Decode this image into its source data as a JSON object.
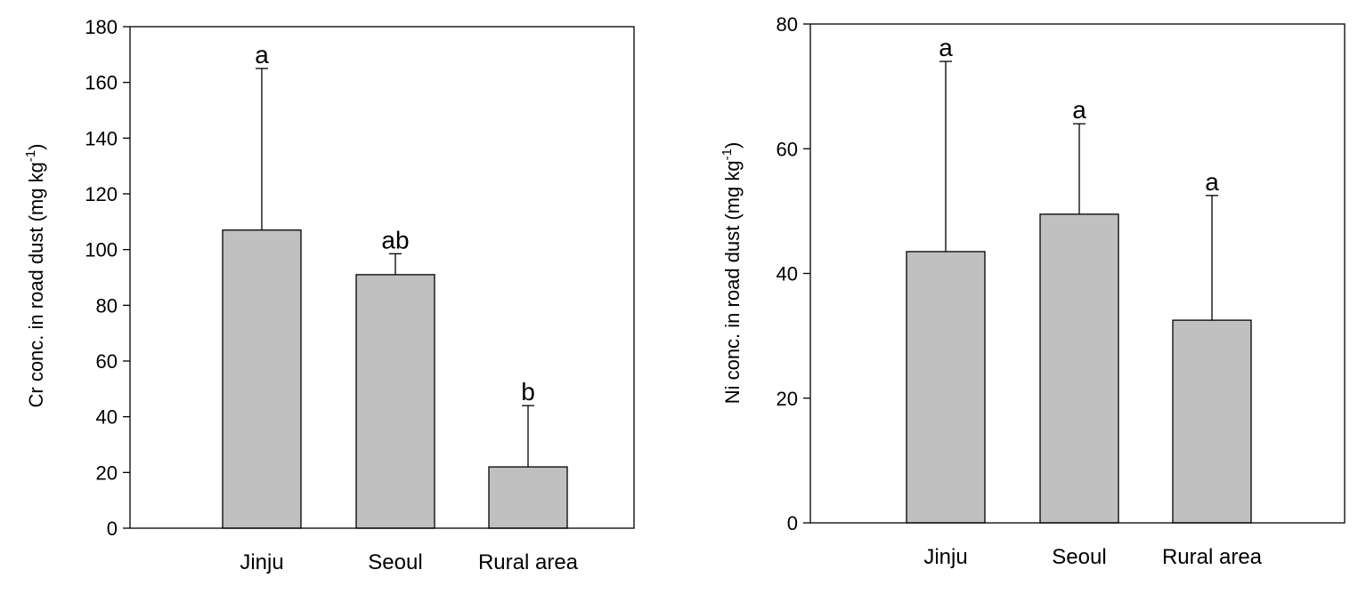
{
  "chart_data": [
    {
      "type": "bar",
      "categories": [
        "Jinju",
        "Seoul",
        "Rural area"
      ],
      "values": [
        107,
        91,
        22
      ],
      "error_upper": [
        165,
        98.5,
        44
      ],
      "significance_letters": [
        "a",
        "ab",
        "b"
      ],
      "ylabel_main": "Cr conc. in road dust (mg kg",
      "ylabel_sup": "-1",
      "ylabel_close": ")",
      "xlabel": "",
      "ylim": [
        0,
        180
      ],
      "yticks": [
        0,
        20,
        40,
        60,
        80,
        100,
        120,
        140,
        160,
        180
      ],
      "grid": false,
      "bar_color": "#c0c0c0"
    },
    {
      "type": "bar",
      "categories": [
        "Jinju",
        "Seoul",
        "Rural area"
      ],
      "values": [
        43.5,
        49.5,
        32.5
      ],
      "error_upper": [
        74,
        64,
        52.5
      ],
      "significance_letters": [
        "a",
        "a",
        "a"
      ],
      "ylabel_main": "Ni conc. in road dust (mg kg",
      "ylabel_sup": "-1",
      "ylabel_close": ")",
      "xlabel": "",
      "ylim": [
        0,
        80
      ],
      "yticks": [
        0,
        20,
        40,
        60,
        80
      ],
      "grid": false,
      "bar_color": "#c0c0c0"
    }
  ]
}
